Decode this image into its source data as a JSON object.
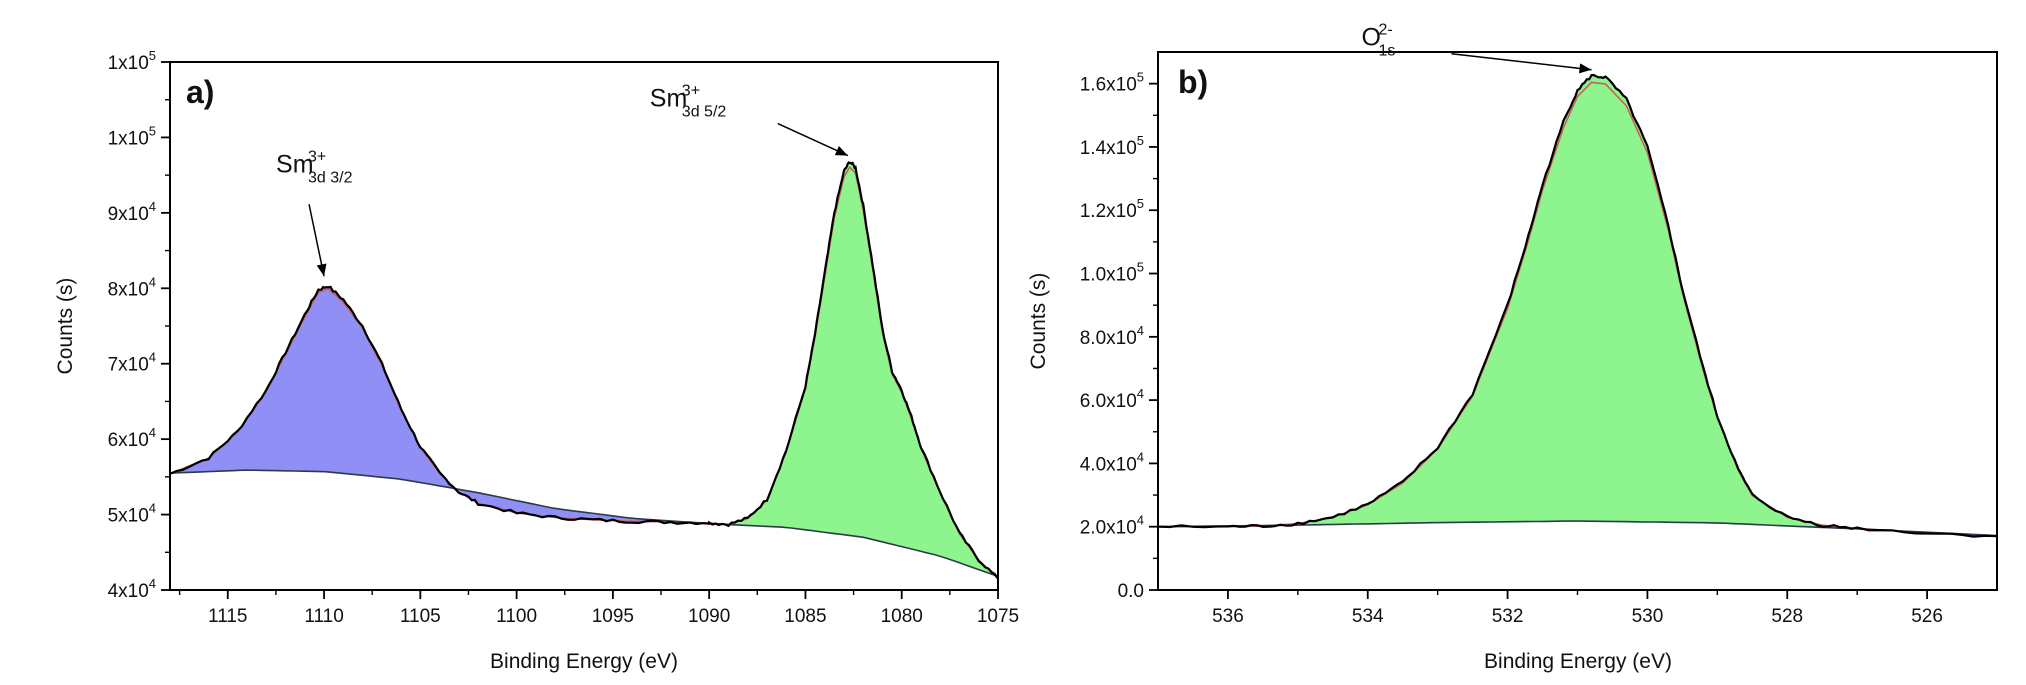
{
  "chart_data": [
    {
      "panel": "a)",
      "type": "area",
      "xlabel": "Binding Energy (eV)",
      "ylabel": "Counts (s)",
      "xlim": [
        1118,
        1075
      ],
      "x_reversed": true,
      "ylim": [
        40000,
        110000
      ],
      "x_ticks": [
        1115,
        1110,
        1105,
        1100,
        1095,
        1090,
        1085,
        1080,
        1075
      ],
      "y_ticks": [
        {
          "value": 40000,
          "label": "4x10",
          "exp": "4"
        },
        {
          "value": 50000,
          "label": "5x10",
          "exp": "4"
        },
        {
          "value": 60000,
          "label": "6x10",
          "exp": "4"
        },
        {
          "value": 70000,
          "label": "7x10",
          "exp": "4"
        },
        {
          "value": 80000,
          "label": "8x10",
          "exp": "4"
        },
        {
          "value": 90000,
          "label": "9x10",
          "exp": "4"
        },
        {
          "value": 100000,
          "label": "1x10",
          "exp": "5"
        },
        {
          "value": 110000,
          "label": "1x10",
          "exp": "5"
        }
      ],
      "background": {
        "x": [
          1118,
          1114,
          1110,
          1106,
          1102,
          1098,
          1094,
          1090,
          1086,
          1082,
          1078,
          1075
        ],
        "y": [
          55500,
          55900,
          55700,
          54700,
          52900,
          50800,
          49500,
          48800,
          48300,
          47000,
          44500,
          41800
        ]
      },
      "peaks": [
        {
          "label": "Sm",
          "sup": "3+",
          "sub": "3d 3/2",
          "center": 1110.0,
          "height": 78500,
          "fill": "#8f8ff5",
          "data": [
            [
              1118,
              55400
            ],
            [
              1116,
              57500
            ],
            [
              1114.5,
              61000
            ],
            [
              1113,
              66500
            ],
            [
              1112,
              71500
            ],
            [
              1111,
              76500
            ],
            [
              1110.3,
              79800
            ],
            [
              1109.8,
              80300
            ],
            [
              1109,
              78500
            ],
            [
              1108,
              75000
            ],
            [
              1107,
              70000
            ],
            [
              1106,
              64000
            ],
            [
              1105,
              59000
            ],
            [
              1104,
              55500
            ],
            [
              1103,
              53000
            ],
            [
              1102,
              51500
            ],
            [
              1100,
              50200
            ],
            [
              1098,
              49600
            ],
            [
              1096,
              49300
            ],
            [
              1094,
              49100
            ],
            [
              1092,
              49000
            ],
            [
              1090,
              48900
            ]
          ]
        },
        {
          "label": "Sm",
          "sup": "3+",
          "sub": "3d 5/2",
          "center": 1083.0,
          "height": 96000,
          "fill": "#8ef58e",
          "data": [
            [
              1090,
              48900
            ],
            [
              1089,
              48700
            ],
            [
              1088,
              49500
            ],
            [
              1087,
              52000
            ],
            [
              1086,
              58500
            ],
            [
              1085,
              67000
            ],
            [
              1084.5,
              74000
            ],
            [
              1084,
              82000
            ],
            [
              1083.5,
              90000
            ],
            [
              1083,
              95500
            ],
            [
              1082.7,
              96800
            ],
            [
              1082.4,
              96000
            ],
            [
              1082,
              91000
            ],
            [
              1081.5,
              83000
            ],
            [
              1081,
              74500
            ],
            [
              1080.5,
              69000
            ],
            [
              1080,
              66500
            ],
            [
              1079.5,
              63000
            ],
            [
              1079,
              59000
            ],
            [
              1078,
              53000
            ],
            [
              1077,
              47500
            ],
            [
              1076,
              44000
            ],
            [
              1075,
              41500
            ]
          ]
        }
      ],
      "annotations": [
        {
          "text": "Sm",
          "sup": "3+",
          "sub": "3d 3/2",
          "x": 1110.0,
          "y": 80800
        },
        {
          "text": "Sm",
          "sup": "3+",
          "sub": "3d 5/2",
          "x": 1082.8,
          "y": 96800
        }
      ]
    },
    {
      "panel": "b)",
      "type": "area",
      "xlabel": "Binding Energy (eV)",
      "ylabel": "Counts (s)",
      "xlim": [
        537,
        525
      ],
      "x_reversed": true,
      "ylim": [
        0,
        170000
      ],
      "x_ticks": [
        536,
        534,
        532,
        530,
        528,
        526
      ],
      "y_ticks": [
        {
          "value": 0,
          "label": "0.0",
          "exp": ""
        },
        {
          "value": 20000,
          "label": "2.0x10",
          "exp": "4"
        },
        {
          "value": 40000,
          "label": "4.0x10",
          "exp": "4"
        },
        {
          "value": 60000,
          "label": "6.0x10",
          "exp": "4"
        },
        {
          "value": 80000,
          "label": "8.0x10",
          "exp": "4"
        },
        {
          "value": 100000,
          "label": "1.0x10",
          "exp": "5"
        },
        {
          "value": 120000,
          "label": "1.2x10",
          "exp": "5"
        },
        {
          "value": 140000,
          "label": "1.4x10",
          "exp": "5"
        },
        {
          "value": 160000,
          "label": "1.6x10",
          "exp": "5"
        }
      ],
      "background": {
        "x": [
          537,
          535,
          533,
          531,
          529,
          527,
          525
        ],
        "y": [
          20000,
          20500,
          21300,
          21800,
          21200,
          19300,
          17200
        ]
      },
      "peaks": [
        {
          "label": "O",
          "sup": "2-",
          "sub": "1s",
          "center": 531.0,
          "height": 162000,
          "fill": "#8ef58e",
          "data": [
            [
              537,
              20000
            ],
            [
              536,
              20000
            ],
            [
              535.5,
              20200
            ],
            [
              535,
              21000
            ],
            [
              534.5,
              23000
            ],
            [
              534,
              27000
            ],
            [
              533.5,
              34000
            ],
            [
              533,
              45000
            ],
            [
              532.5,
              62000
            ],
            [
              532,
              90000
            ],
            [
              531.7,
              112000
            ],
            [
              531.5,
              128000
            ],
            [
              531.2,
              148000
            ],
            [
              531.0,
              158000
            ],
            [
              530.8,
              162500
            ],
            [
              530.6,
              162000
            ],
            [
              530.3,
              155000
            ],
            [
              530,
              140000
            ],
            [
              529.7,
              115000
            ],
            [
              529.5,
              95000
            ],
            [
              529.2,
              70000
            ],
            [
              529,
              55000
            ],
            [
              528.7,
              38000
            ],
            [
              528.5,
              30000
            ],
            [
              528,
              23000
            ],
            [
              527.5,
              20500
            ],
            [
              527,
              19500
            ],
            [
              526,
              18000
            ],
            [
              525,
              17000
            ]
          ]
        }
      ],
      "annotations": [
        {
          "text": "O",
          "sup": "2-",
          "sub": "1s",
          "x": 530.8,
          "y": 162500
        }
      ]
    }
  ]
}
